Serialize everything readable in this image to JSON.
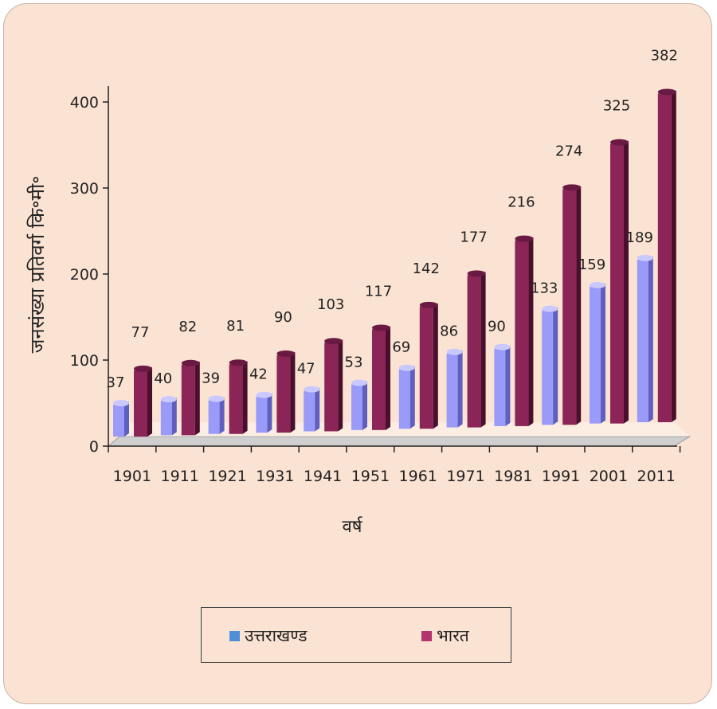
{
  "chart_data": {
    "type": "bar",
    "title": "",
    "xlabel": "वर्ष",
    "ylabel": "जनसंख्या प्रतिवर्ग कि॰मी॰",
    "ylim": [
      0,
      400
    ],
    "yticks": [
      0,
      100,
      200,
      300,
      400
    ],
    "categories": [
      "1901",
      "1911",
      "1921",
      "1931",
      "1941",
      "1951",
      "1961",
      "1971",
      "1981",
      "1991",
      "2001",
      "2011"
    ],
    "series": [
      {
        "name": "उत्तराखण्ड",
        "color": "#8f8ff5",
        "values": [
          37,
          40,
          39,
          42,
          47,
          53,
          69,
          86,
          90,
          133,
          159,
          189
        ]
      },
      {
        "name": "भारत",
        "color": "#8b2557",
        "values": [
          77,
          82,
          81,
          90,
          103,
          117,
          142,
          177,
          216,
          274,
          325,
          382
        ]
      }
    ],
    "legend_position": "bottom",
    "grid": false
  }
}
